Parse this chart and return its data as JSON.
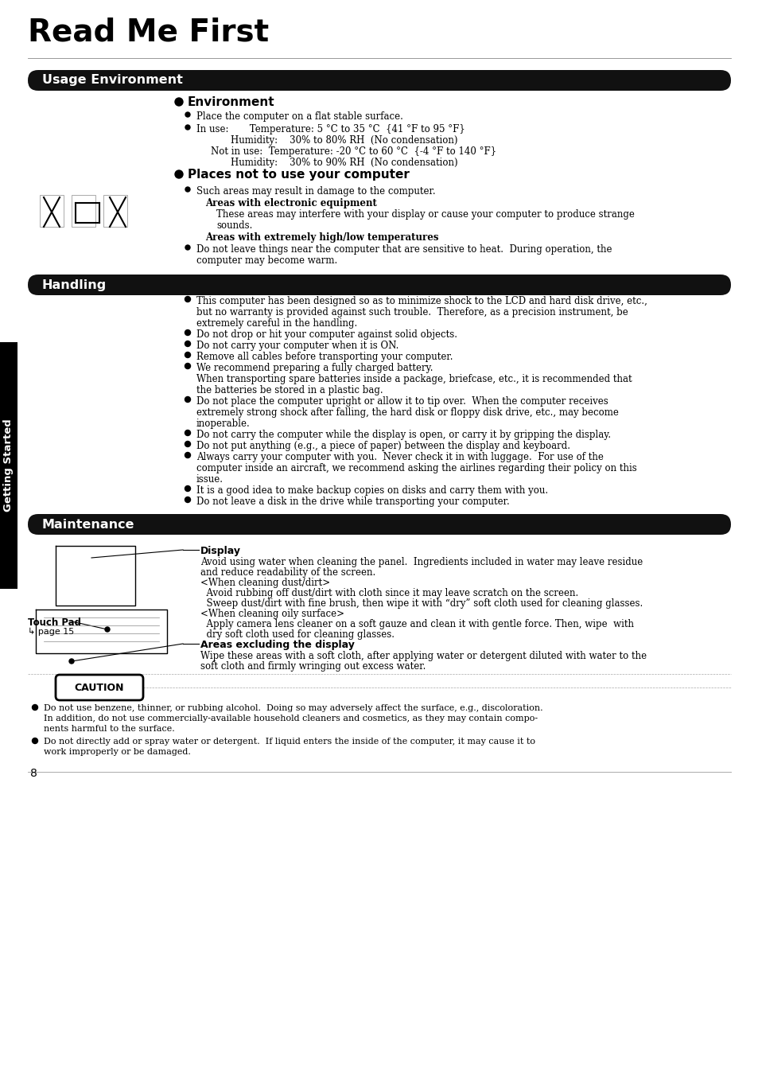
{
  "title": "Read Me First",
  "bg_color": "#ffffff",
  "page_number": "8",
  "sidebar_text": "Getting Started",
  "section_header_bg": "#000000",
  "section_header_color": "#ffffff",
  "sections": [
    "Usage Environment",
    "Handling",
    "Maintenance"
  ]
}
